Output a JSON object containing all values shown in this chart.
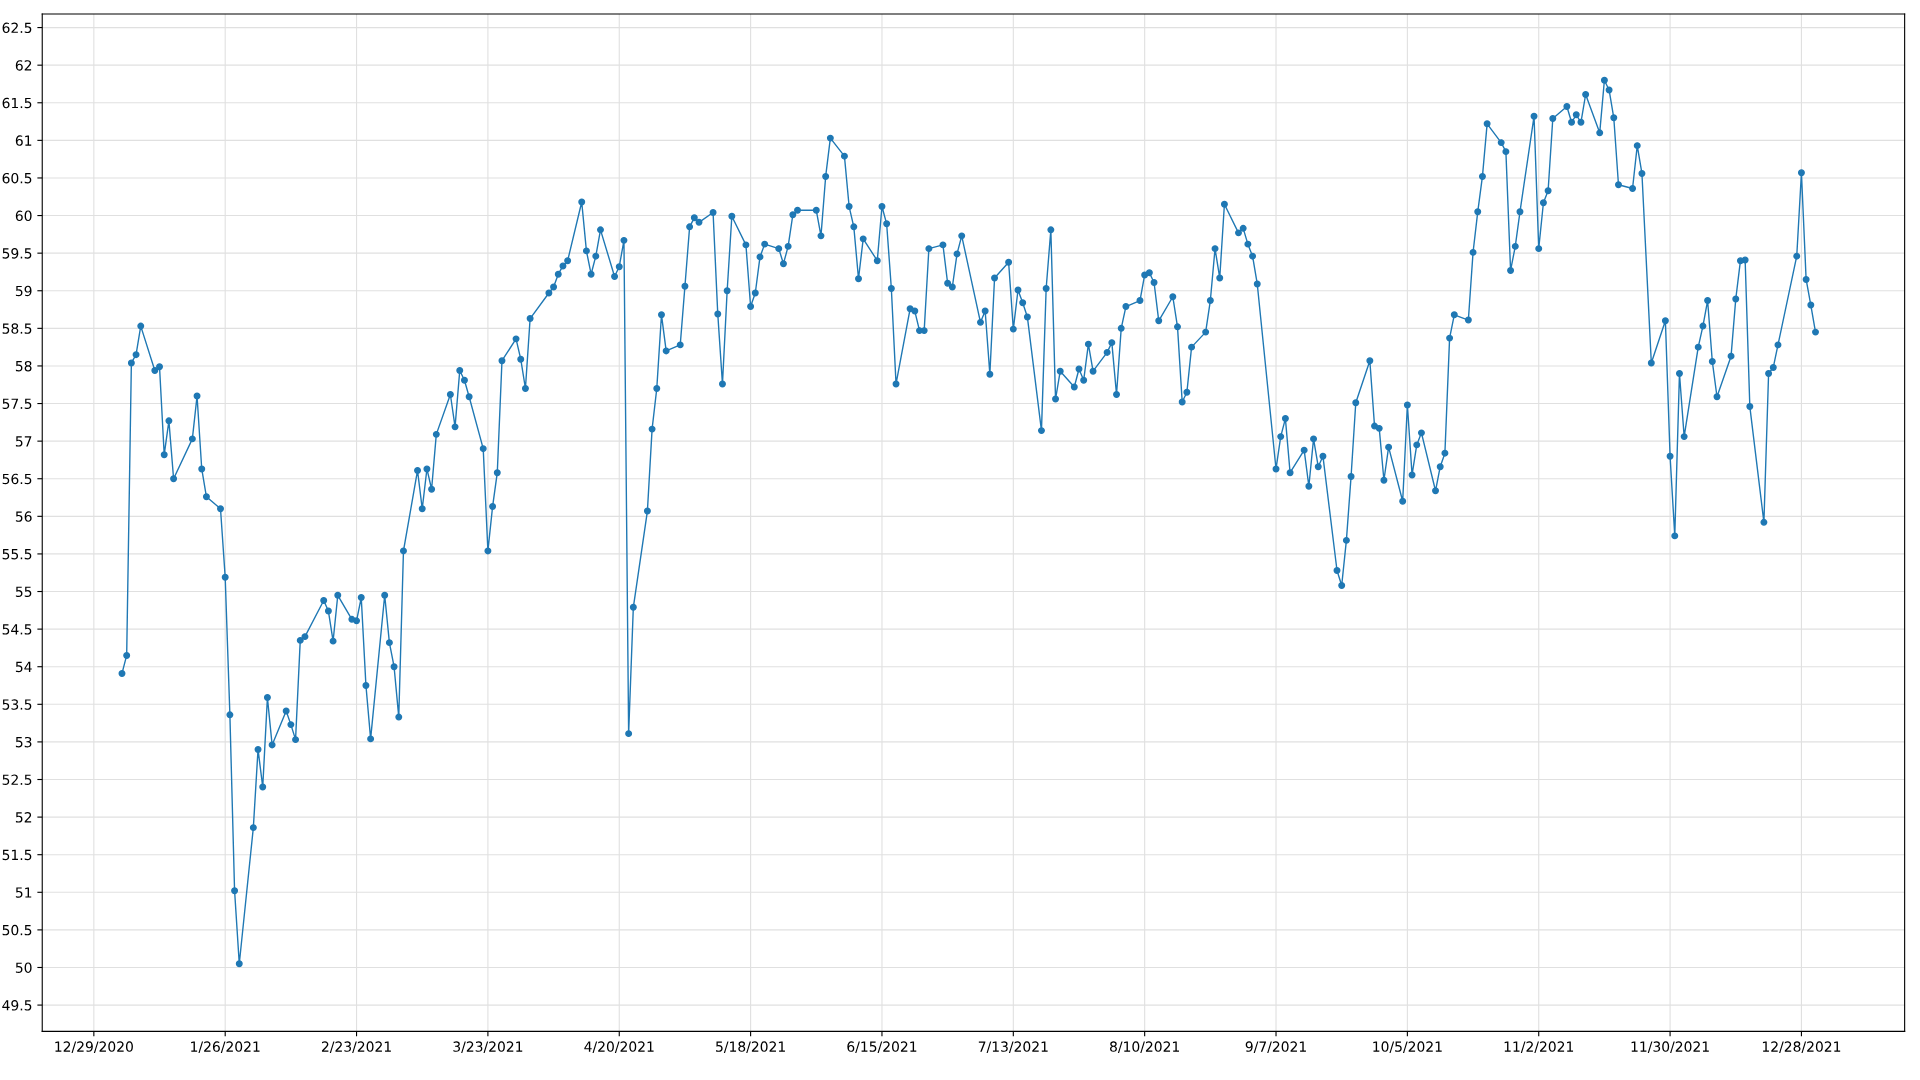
{
  "chart_data": {
    "type": "line",
    "marker": "circle",
    "line_style": "solid",
    "grid": true,
    "xlim": [
      "2020-12-18",
      "2022-01-19"
    ],
    "xticks": [
      {
        "value": "2020-12-29",
        "label": "12/29/2020"
      },
      {
        "value": "2021-01-26",
        "label": "1/26/2021"
      },
      {
        "value": "2021-02-23",
        "label": "2/23/2021"
      },
      {
        "value": "2021-03-23",
        "label": "3/23/2021"
      },
      {
        "value": "2021-04-20",
        "label": "4/20/2021"
      },
      {
        "value": "2021-05-18",
        "label": "5/18/2021"
      },
      {
        "value": "2021-06-15",
        "label": "6/15/2021"
      },
      {
        "value": "2021-07-13",
        "label": "7/13/2021"
      },
      {
        "value": "2021-08-10",
        "label": "8/10/2021"
      },
      {
        "value": "2021-09-07",
        "label": "9/7/2021"
      },
      {
        "value": "2021-10-05",
        "label": "10/5/2021"
      },
      {
        "value": "2021-11-02",
        "label": "11/2/2021"
      },
      {
        "value": "2021-11-30",
        "label": "11/30/2021"
      },
      {
        "value": "2021-12-28",
        "label": "12/28/2021"
      }
    ],
    "ylim": [
      49.15,
      62.68
    ],
    "yticks": [
      49.5,
      50,
      50.5,
      51,
      51.5,
      52,
      52.5,
      53,
      53.5,
      54,
      54.5,
      55,
      55.5,
      56,
      56.5,
      57,
      57.5,
      58,
      58.5,
      59,
      59.5,
      60,
      60.5,
      61,
      61.5,
      62,
      62.5
    ],
    "series": [
      {
        "color": "#1f78b4",
        "x": [
          "2021-01-04",
          "2021-01-05",
          "2021-01-06",
          "2021-01-07",
          "2021-01-08",
          "2021-01-11",
          "2021-01-12",
          "2021-01-13",
          "2021-01-14",
          "2021-01-15",
          "2021-01-19",
          "2021-01-20",
          "2021-01-21",
          "2021-01-22",
          "2021-01-25",
          "2021-01-26",
          "2021-01-27",
          "2021-01-28",
          "2021-01-29",
          "2021-02-01",
          "2021-02-02",
          "2021-02-03",
          "2021-02-04",
          "2021-02-05",
          "2021-02-08",
          "2021-02-09",
          "2021-02-10",
          "2021-02-11",
          "2021-02-12",
          "2021-02-16",
          "2021-02-17",
          "2021-02-18",
          "2021-02-19",
          "2021-02-22",
          "2021-02-23",
          "2021-02-24",
          "2021-02-25",
          "2021-02-26",
          "2021-03-01",
          "2021-03-02",
          "2021-03-03",
          "2021-03-04",
          "2021-03-05",
          "2021-03-08",
          "2021-03-09",
          "2021-03-10",
          "2021-03-11",
          "2021-03-12",
          "2021-03-15",
          "2021-03-16",
          "2021-03-17",
          "2021-03-18",
          "2021-03-19",
          "2021-03-22",
          "2021-03-23",
          "2021-03-24",
          "2021-03-25",
          "2021-03-26",
          "2021-03-29",
          "2021-03-30",
          "2021-03-31",
          "2021-04-01",
          "2021-04-05",
          "2021-04-06",
          "2021-04-07",
          "2021-04-08",
          "2021-04-09",
          "2021-04-12",
          "2021-04-13",
          "2021-04-14",
          "2021-04-15",
          "2021-04-16",
          "2021-04-19",
          "2021-04-20",
          "2021-04-21",
          "2021-04-22",
          "2021-04-23",
          "2021-04-26",
          "2021-04-27",
          "2021-04-28",
          "2021-04-29",
          "2021-04-30",
          "2021-05-03",
          "2021-05-04",
          "2021-05-05",
          "2021-05-06",
          "2021-05-07",
          "2021-05-10",
          "2021-05-11",
          "2021-05-12",
          "2021-05-13",
          "2021-05-14",
          "2021-05-17",
          "2021-05-18",
          "2021-05-19",
          "2021-05-20",
          "2021-05-21",
          "2021-05-24",
          "2021-05-25",
          "2021-05-26",
          "2021-05-27",
          "2021-05-28",
          "2021-06-01",
          "2021-06-02",
          "2021-06-03",
          "2021-06-04",
          "2021-06-07",
          "2021-06-08",
          "2021-06-09",
          "2021-06-10",
          "2021-06-11",
          "2021-06-14",
          "2021-06-15",
          "2021-06-16",
          "2021-06-17",
          "2021-06-18",
          "2021-06-21",
          "2021-06-22",
          "2021-06-23",
          "2021-06-24",
          "2021-06-25",
          "2021-06-28",
          "2021-06-29",
          "2021-06-30",
          "2021-07-01",
          "2021-07-02",
          "2021-07-06",
          "2021-07-07",
          "2021-07-08",
          "2021-07-09",
          "2021-07-12",
          "2021-07-13",
          "2021-07-14",
          "2021-07-15",
          "2021-07-16",
          "2021-07-19",
          "2021-07-20",
          "2021-07-21",
          "2021-07-22",
          "2021-07-23",
          "2021-07-26",
          "2021-07-27",
          "2021-07-28",
          "2021-07-29",
          "2021-07-30",
          "2021-08-02",
          "2021-08-03",
          "2021-08-04",
          "2021-08-05",
          "2021-08-06",
          "2021-08-09",
          "2021-08-10",
          "2021-08-11",
          "2021-08-12",
          "2021-08-13",
          "2021-08-16",
          "2021-08-17",
          "2021-08-18",
          "2021-08-19",
          "2021-08-20",
          "2021-08-23",
          "2021-08-24",
          "2021-08-25",
          "2021-08-26",
          "2021-08-27",
          "2021-08-30",
          "2021-08-31",
          "2021-09-01",
          "2021-09-02",
          "2021-09-03",
          "2021-09-07",
          "2021-09-08",
          "2021-09-09",
          "2021-09-10",
          "2021-09-13",
          "2021-09-14",
          "2021-09-15",
          "2021-09-16",
          "2021-09-17",
          "2021-09-20",
          "2021-09-21",
          "2021-09-22",
          "2021-09-23",
          "2021-09-24",
          "2021-09-27",
          "2021-09-28",
          "2021-09-29",
          "2021-09-30",
          "2021-10-01",
          "2021-10-04",
          "2021-10-05",
          "2021-10-06",
          "2021-10-07",
          "2021-10-08",
          "2021-10-11",
          "2021-10-12",
          "2021-10-13",
          "2021-10-14",
          "2021-10-15",
          "2021-10-18",
          "2021-10-19",
          "2021-10-20",
          "2021-10-21",
          "2021-10-22",
          "2021-10-25",
          "2021-10-26",
          "2021-10-27",
          "2021-10-28",
          "2021-10-29",
          "2021-11-01",
          "2021-11-02",
          "2021-11-03",
          "2021-11-04",
          "2021-11-05",
          "2021-11-08",
          "2021-11-09",
          "2021-11-10",
          "2021-11-11",
          "2021-11-12",
          "2021-11-15",
          "2021-11-16",
          "2021-11-17",
          "2021-11-18",
          "2021-11-19",
          "2021-11-22",
          "2021-11-23",
          "2021-11-24",
          "2021-11-26",
          "2021-11-29",
          "2021-11-30",
          "2021-12-01",
          "2021-12-02",
          "2021-12-03",
          "2021-12-06",
          "2021-12-07",
          "2021-12-08",
          "2021-12-09",
          "2021-12-10",
          "2021-12-13",
          "2021-12-14",
          "2021-12-15",
          "2021-12-16",
          "2021-12-17",
          "2021-12-20",
          "2021-12-21",
          "2021-12-22",
          "2021-12-23",
          "2021-12-27",
          "2021-12-28",
          "2021-12-29",
          "2021-12-30",
          "2021-12-31"
        ],
        "values": [
          53.91,
          54.15,
          58.04,
          58.15,
          58.53,
          57.94,
          57.99,
          56.82,
          57.27,
          56.5,
          57.03,
          57.6,
          56.63,
          56.26,
          56.1,
          55.19,
          53.36,
          51.02,
          50.05,
          51.86,
          52.9,
          52.4,
          53.59,
          52.96,
          53.41,
          53.23,
          53.03,
          54.35,
          54.4,
          54.88,
          54.74,
          54.34,
          54.95,
          54.63,
          54.61,
          54.92,
          53.75,
          53.04,
          54.95,
          54.32,
          54.0,
          53.33,
          55.54,
          56.61,
          56.1,
          56.63,
          56.36,
          57.09,
          57.62,
          57.19,
          57.94,
          57.81,
          57.59,
          56.9,
          55.54,
          56.13,
          56.58,
          58.07,
          58.36,
          58.09,
          57.7,
          58.63,
          58.97,
          59.05,
          59.22,
          59.33,
          59.4,
          60.18,
          59.53,
          59.22,
          59.46,
          59.81,
          59.19,
          59.32,
          59.67,
          53.11,
          54.79,
          56.07,
          57.16,
          57.7,
          58.68,
          58.2,
          58.28,
          59.06,
          59.85,
          59.97,
          59.91,
          60.04,
          58.69,
          57.76,
          59.0,
          59.99,
          59.61,
          58.79,
          58.97,
          59.45,
          59.62,
          59.56,
          59.36,
          59.59,
          60.01,
          60.07,
          60.07,
          59.73,
          60.52,
          61.03,
          60.79,
          60.12,
          59.85,
          59.16,
          59.69,
          59.4,
          60.12,
          59.89,
          59.03,
          57.76,
          58.76,
          58.73,
          58.47,
          58.47,
          59.56,
          59.61,
          59.1,
          59.05,
          59.49,
          59.73,
          58.58,
          58.73,
          57.89,
          59.17,
          59.38,
          58.49,
          59.01,
          58.84,
          58.65,
          57.14,
          59.03,
          59.81,
          57.56,
          57.93,
          57.72,
          57.96,
          57.81,
          58.29,
          57.93,
          58.18,
          58.31,
          57.62,
          58.5,
          58.79,
          58.87,
          59.21,
          59.24,
          59.11,
          58.6,
          58.92,
          58.52,
          57.52,
          57.65,
          58.25,
          58.45,
          58.87,
          59.56,
          59.17,
          60.15,
          59.77,
          59.83,
          59.62,
          59.46,
          59.09,
          56.63,
          57.06,
          57.3,
          56.58,
          56.88,
          56.4,
          57.03,
          56.66,
          56.8,
          55.28,
          55.08,
          55.68,
          56.53,
          57.51,
          58.07,
          57.2,
          57.17,
          56.48,
          56.92,
          56.2,
          57.48,
          56.55,
          56.95,
          57.11,
          56.34,
          56.66,
          56.84,
          58.37,
          58.68,
          58.61,
          59.51,
          60.05,
          60.52,
          61.22,
          60.97,
          60.85,
          59.27,
          59.59,
          60.05,
          61.32,
          59.56,
          60.17,
          60.33,
          61.29,
          61.45,
          61.24,
          61.34,
          61.24,
          61.61,
          61.1,
          61.8,
          61.67,
          61.3,
          60.41,
          60.36,
          60.93,
          60.56,
          58.04,
          58.6,
          56.8,
          55.74,
          57.9,
          57.06,
          58.25,
          58.53,
          58.87,
          58.06,
          57.59,
          58.13,
          58.89,
          59.4,
          59.41,
          57.46,
          55.92,
          57.9,
          57.98,
          58.28,
          59.46,
          60.57,
          59.15,
          58.81,
          58.45
        ]
      }
    ]
  }
}
